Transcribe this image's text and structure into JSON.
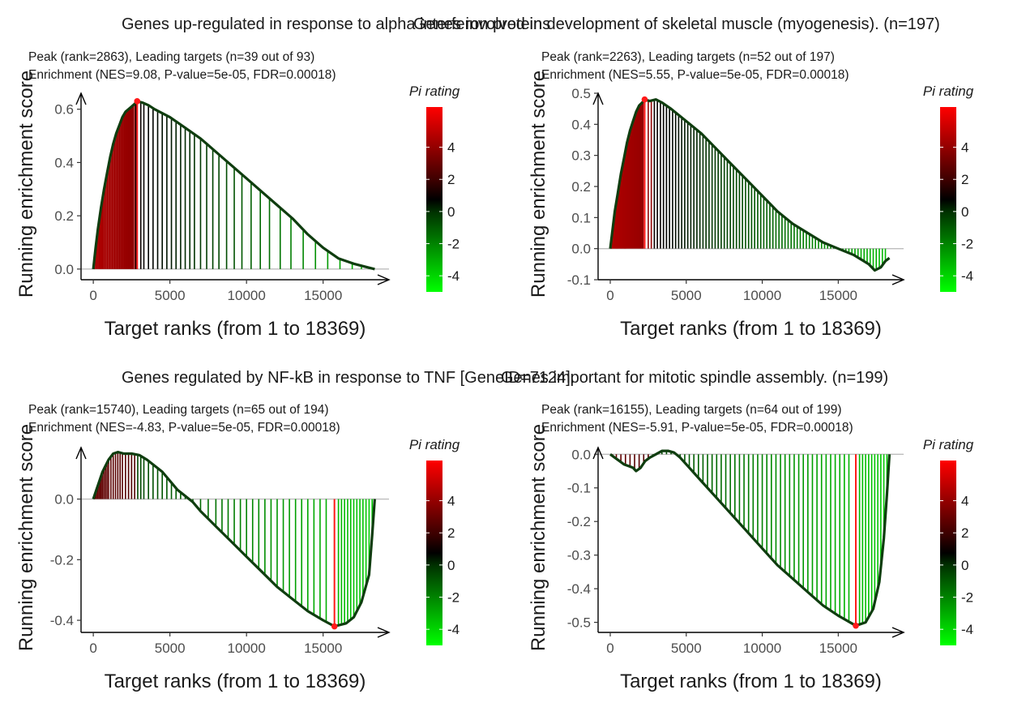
{
  "chart_data": [
    {
      "type": "line",
      "title": "Genes up-regulated in response to alpha interferon proteins",
      "subtitle_peak": "Peak (rank=2863), Leading targets (n=39 out of 93)",
      "subtitle_enrichment": "Enrichment (NES=9.08, P-value=5e-05, FDR=0.00018)",
      "xlabel": "Target ranks (from 1 to 18369)",
      "ylabel": "Running enrichment score",
      "xlim": [
        -800,
        19300
      ],
      "ylim": [
        -0.04,
        0.66
      ],
      "x_ticks": [
        0,
        5000,
        10000,
        15000
      ],
      "y_ticks": [
        0.0,
        0.2,
        0.4,
        0.6
      ],
      "peak": {
        "rank": 2863,
        "score": 0.63
      },
      "curve": [
        [
          0,
          0
        ],
        [
          150,
          0.08
        ],
        [
          300,
          0.15
        ],
        [
          500,
          0.23
        ],
        [
          700,
          0.3
        ],
        [
          900,
          0.36
        ],
        [
          1100,
          0.42
        ],
        [
          1300,
          0.47
        ],
        [
          1500,
          0.51
        ],
        [
          1700,
          0.54
        ],
        [
          1900,
          0.57
        ],
        [
          2100,
          0.59
        ],
        [
          2300,
          0.6
        ],
        [
          2500,
          0.61
        ],
        [
          2700,
          0.62
        ],
        [
          2863,
          0.63
        ],
        [
          3200,
          0.625
        ],
        [
          3600,
          0.615
        ],
        [
          4000,
          0.6
        ],
        [
          5000,
          0.57
        ],
        [
          6000,
          0.53
        ],
        [
          7000,
          0.49
        ],
        [
          8000,
          0.44
        ],
        [
          9000,
          0.39
        ],
        [
          10000,
          0.34
        ],
        [
          11000,
          0.29
        ],
        [
          12000,
          0.24
        ],
        [
          13000,
          0.19
        ],
        [
          14000,
          0.13
        ],
        [
          15000,
          0.08
        ],
        [
          16000,
          0.04
        ],
        [
          17000,
          0.02
        ],
        [
          18000,
          0.005
        ],
        [
          18369,
          0
        ]
      ],
      "targets": [
        80,
        160,
        240,
        320,
        400,
        470,
        540,
        610,
        680,
        760,
        840,
        920,
        1000,
        1080,
        1160,
        1240,
        1320,
        1400,
        1480,
        1560,
        1640,
        1720,
        1800,
        1880,
        1960,
        2040,
        2120,
        2200,
        2280,
        2360,
        2440,
        2520,
        2600,
        2700,
        2780,
        2863,
        3100,
        3300,
        3600,
        3900,
        4200,
        4500,
        4800,
        5100,
        5400,
        5700,
        6000,
        6300,
        6600,
        7000,
        7400,
        7800,
        8200,
        8700,
        9200,
        9700,
        10300,
        10900,
        11500,
        12200,
        12900,
        13700,
        14500,
        15300,
        16100,
        16900,
        17500,
        18000
      ],
      "legend": {
        "title": "Pi rating",
        "ticks": [
          4,
          2,
          0,
          -2,
          -4
        ],
        "range": [
          -5,
          6.5
        ]
      }
    },
    {
      "type": "line",
      "title": "Genes involved in development of skeletal muscle (myogenesis). (n=197)",
      "subtitle_peak": "Peak (rank=2263), Leading targets (n=52 out of 197)",
      "subtitle_enrichment": "Enrichment (NES=5.55, P-value=5e-05, FDR=0.00018)",
      "xlabel": "Target ranks (from 1 to 18369)",
      "ylabel": "Running enrichment score",
      "xlim": [
        -800,
        19300
      ],
      "ylim": [
        -0.1,
        0.5
      ],
      "x_ticks": [
        0,
        5000,
        10000,
        15000
      ],
      "y_ticks": [
        -0.1,
        0.0,
        0.1,
        0.2,
        0.3,
        0.4,
        0.5
      ],
      "peak": {
        "rank": 2263,
        "score": 0.48
      },
      "curve": [
        [
          0,
          0
        ],
        [
          150,
          0.06
        ],
        [
          300,
          0.12
        ],
        [
          500,
          0.18
        ],
        [
          700,
          0.24
        ],
        [
          900,
          0.29
        ],
        [
          1100,
          0.34
        ],
        [
          1300,
          0.38
        ],
        [
          1500,
          0.41
        ],
        [
          1700,
          0.44
        ],
        [
          1900,
          0.46
        ],
        [
          2100,
          0.47
        ],
        [
          2263,
          0.48
        ],
        [
          2600,
          0.475
        ],
        [
          3000,
          0.48
        ],
        [
          3400,
          0.47
        ],
        [
          4000,
          0.45
        ],
        [
          5000,
          0.41
        ],
        [
          6000,
          0.37
        ],
        [
          7000,
          0.32
        ],
        [
          8000,
          0.27
        ],
        [
          9000,
          0.22
        ],
        [
          10000,
          0.17
        ],
        [
          11000,
          0.12
        ],
        [
          12000,
          0.08
        ],
        [
          13000,
          0.05
        ],
        [
          14000,
          0.02
        ],
        [
          15000,
          0.0
        ],
        [
          16000,
          -0.02
        ],
        [
          17000,
          -0.05
        ],
        [
          17400,
          -0.07
        ],
        [
          17800,
          -0.06
        ],
        [
          18100,
          -0.04
        ],
        [
          18369,
          -0.03
        ]
      ],
      "targets": [
        60,
        120,
        180,
        240,
        300,
        360,
        420,
        480,
        540,
        600,
        660,
        720,
        780,
        840,
        900,
        960,
        1020,
        1080,
        1140,
        1200,
        1260,
        1320,
        1380,
        1440,
        1500,
        1560,
        1620,
        1680,
        1740,
        1800,
        1860,
        1920,
        1980,
        2040,
        2100,
        2160,
        2263,
        2500,
        2700,
        2900,
        3100,
        3300,
        3500,
        3700,
        3900,
        4100,
        4300,
        4500,
        4700,
        4900,
        5100,
        5300,
        5500,
        5700,
        5900,
        6100,
        6300,
        6500,
        6700,
        6900,
        7100,
        7300,
        7500,
        7700,
        7900,
        8100,
        8300,
        8500,
        8700,
        8900,
        9100,
        9300,
        9500,
        9700,
        9900,
        10100,
        10300,
        10500,
        10700,
        10900,
        11100,
        11300,
        11500,
        11700,
        11900,
        12100,
        12300,
        12500,
        12700,
        12900,
        13100,
        13300,
        13500,
        13700,
        13900,
        14100,
        14300,
        14500,
        14700,
        14900,
        15100,
        15300,
        15500,
        15700,
        15900,
        16100,
        16300,
        16500,
        16700,
        16900,
        17100,
        17300,
        17500,
        17700,
        17900,
        18100
      ],
      "legend": {
        "title": "Pi rating",
        "ticks": [
          4,
          2,
          0,
          -2,
          -4
        ],
        "range": [
          -5,
          6.5
        ]
      }
    },
    {
      "type": "line",
      "title": "Genes regulated by NF-kB in response to TNF [GeneID=7124].",
      "subtitle_peak": "Peak (rank=15740), Leading targets (n=65 out of 194)",
      "subtitle_enrichment": "Enrichment (NES=-4.83, P-value=5e-05, FDR=0.00018)",
      "xlabel": "Target ranks (from 1 to 18369)",
      "ylabel": "Running enrichment score",
      "xlim": [
        -800,
        19300
      ],
      "ylim": [
        -0.44,
        0.17
      ],
      "x_ticks": [
        0,
        5000,
        10000,
        15000
      ],
      "y_ticks": [
        -0.4,
        -0.2,
        0.0
      ],
      "peak": {
        "rank": 15740,
        "score": -0.42
      },
      "curve": [
        [
          0,
          0
        ],
        [
          200,
          0.03
        ],
        [
          400,
          0.06
        ],
        [
          600,
          0.09
        ],
        [
          800,
          0.11
        ],
        [
          1000,
          0.13
        ],
        [
          1300,
          0.15
        ],
        [
          1600,
          0.155
        ],
        [
          2000,
          0.15
        ],
        [
          2500,
          0.15
        ],
        [
          3000,
          0.145
        ],
        [
          3500,
          0.13
        ],
        [
          4000,
          0.11
        ],
        [
          4500,
          0.09
        ],
        [
          5000,
          0.06
        ],
        [
          5500,
          0.03
        ],
        [
          6000,
          0.01
        ],
        [
          6500,
          -0.01
        ],
        [
          7000,
          -0.04
        ],
        [
          8000,
          -0.09
        ],
        [
          9000,
          -0.14
        ],
        [
          10000,
          -0.19
        ],
        [
          11000,
          -0.24
        ],
        [
          12000,
          -0.29
        ],
        [
          13000,
          -0.33
        ],
        [
          14000,
          -0.37
        ],
        [
          15000,
          -0.4
        ],
        [
          15740,
          -0.42
        ],
        [
          16500,
          -0.41
        ],
        [
          17000,
          -0.39
        ],
        [
          17500,
          -0.34
        ],
        [
          18000,
          -0.25
        ],
        [
          18200,
          -0.12
        ],
        [
          18369,
          0
        ]
      ],
      "targets": [
        60,
        130,
        200,
        280,
        360,
        440,
        520,
        600,
        700,
        800,
        900,
        1000,
        1150,
        1300,
        1450,
        1600,
        1750,
        1900,
        2100,
        2300,
        2500,
        2700,
        2900,
        3100,
        3300,
        3600,
        3900,
        4200,
        4500,
        4800,
        5100,
        5400,
        5700,
        6000,
        6500,
        7000,
        7500,
        8000,
        8400,
        8800,
        9200,
        9600,
        10000,
        10400,
        10800,
        11200,
        11600,
        12000,
        12400,
        12800,
        13200,
        13600,
        14000,
        14400,
        14800,
        15200,
        15740,
        16000,
        16200,
        16400,
        16600,
        16800,
        17000,
        17200,
        17400,
        17600,
        17800,
        18000,
        18200
      ],
      "legend": {
        "title": "Pi rating",
        "ticks": [
          4,
          2,
          0,
          -2,
          -4
        ],
        "range": [
          -5,
          6.5
        ]
      }
    },
    {
      "type": "line",
      "title": "Genes important for mitotic spindle assembly. (n=199)",
      "subtitle_peak": "Peak (rank=16155), Leading targets (n=64 out of 199)",
      "subtitle_enrichment": "Enrichment (NES=-5.91, P-value=5e-05, FDR=0.00018)",
      "xlabel": "Target ranks (from 1 to 18369)",
      "ylabel": "Running enrichment score",
      "xlim": [
        -800,
        19300
      ],
      "ylim": [
        -0.53,
        0.02
      ],
      "x_ticks": [
        0,
        5000,
        10000,
        15000
      ],
      "y_ticks": [
        -0.5,
        -0.4,
        -0.3,
        -0.2,
        -0.1,
        0.0
      ],
      "peak": {
        "rank": 16155,
        "score": -0.51
      },
      "curve": [
        [
          0,
          0
        ],
        [
          300,
          -0.01
        ],
        [
          600,
          -0.02
        ],
        [
          900,
          -0.03
        ],
        [
          1200,
          -0.035
        ],
        [
          1500,
          -0.04
        ],
        [
          1700,
          -0.05
        ],
        [
          2000,
          -0.04
        ],
        [
          2300,
          -0.02
        ],
        [
          2600,
          -0.01
        ],
        [
          3000,
          0.0
        ],
        [
          3400,
          0.01
        ],
        [
          3800,
          0.01
        ],
        [
          4200,
          0.005
        ],
        [
          4600,
          -0.01
        ],
        [
          5000,
          -0.03
        ],
        [
          6000,
          -0.08
        ],
        [
          7000,
          -0.13
        ],
        [
          8000,
          -0.18
        ],
        [
          9000,
          -0.23
        ],
        [
          10000,
          -0.28
        ],
        [
          11000,
          -0.33
        ],
        [
          12000,
          -0.37
        ],
        [
          13000,
          -0.41
        ],
        [
          14000,
          -0.45
        ],
        [
          15000,
          -0.48
        ],
        [
          16155,
          -0.51
        ],
        [
          16800,
          -0.5
        ],
        [
          17300,
          -0.46
        ],
        [
          17700,
          -0.38
        ],
        [
          18000,
          -0.25
        ],
        [
          18200,
          -0.12
        ],
        [
          18369,
          0
        ]
      ],
      "targets": [
        150,
        400,
        700,
        1000,
        1300,
        1600,
        1900,
        2200,
        2500,
        2800,
        3100,
        3400,
        3700,
        4000,
        4300,
        4600,
        4900,
        5200,
        5500,
        5800,
        6100,
        6400,
        6700,
        7000,
        7300,
        7600,
        7900,
        8200,
        8500,
        8800,
        9100,
        9400,
        9700,
        10000,
        10300,
        10600,
        10900,
        11200,
        11500,
        11800,
        12100,
        12400,
        12700,
        13000,
        13300,
        13600,
        13900,
        14200,
        14500,
        14800,
        15100,
        15400,
        15700,
        16155,
        16400,
        16600,
        16800,
        17000,
        17200,
        17400,
        17600,
        17800,
        18000,
        18200
      ],
      "legend": {
        "title": "Pi rating",
        "ticks": [
          4,
          2,
          0,
          -2,
          -4
        ],
        "range": [
          -5,
          6.5
        ]
      }
    }
  ]
}
